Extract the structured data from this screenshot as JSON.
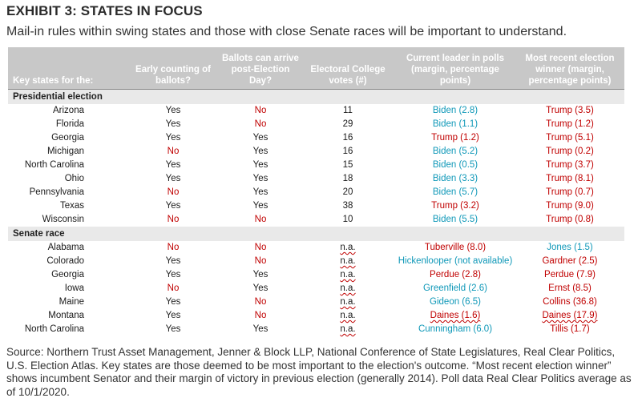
{
  "title": "EXHIBIT 3: STATES IN FOCUS",
  "subtitle": "Mail-in rules within swing states and those with close Senate races will be important to understand.",
  "headers": [
    "Key states for the:",
    "Early counting of ballots?",
    "Ballots can arrive post-Election Day?",
    "Electoral College votes (#)",
    "Current leader in polls (margin, percentage points)",
    "Most recent election winner (margin, percentage points)"
  ],
  "colors": {
    "red": "#c00000",
    "blue": "#0f98b8",
    "header_bg": "#c8c8c8",
    "section_bg": "#e9e9e9"
  },
  "sections": [
    {
      "label": "Presidential election",
      "rows": [
        {
          "state": "Arizona",
          "early": "Yes",
          "early_c": "yes",
          "post": "No",
          "post_c": "red",
          "votes": "11",
          "poll": "Biden (2.8)",
          "poll_c": "blue",
          "winner": "Trump (3.5)",
          "winner_c": "red"
        },
        {
          "state": "Florida",
          "early": "Yes",
          "early_c": "yes",
          "post": "No",
          "post_c": "red",
          "votes": "29",
          "poll": "Biden (1.1)",
          "poll_c": "blue",
          "winner": "Trump (1.2)",
          "winner_c": "red"
        },
        {
          "state": "Georgia",
          "early": "Yes",
          "early_c": "yes",
          "post": "Yes",
          "post_c": "yes",
          "votes": "16",
          "poll": "Trump (1.2)",
          "poll_c": "red",
          "winner": "Trump (5.1)",
          "winner_c": "red"
        },
        {
          "state": "Michigan",
          "early": "No",
          "early_c": "red",
          "post": "Yes",
          "post_c": "yes",
          "votes": "16",
          "poll": "Biden (5.2)",
          "poll_c": "blue",
          "winner": "Trump (0.2)",
          "winner_c": "red"
        },
        {
          "state": "North Carolina",
          "early": "Yes",
          "early_c": "yes",
          "post": "Yes",
          "post_c": "yes",
          "votes": "15",
          "poll": "Biden (0.5)",
          "poll_c": "blue",
          "winner": "Trump (3.7)",
          "winner_c": "red"
        },
        {
          "state": "Ohio",
          "early": "Yes",
          "early_c": "yes",
          "post": "Yes",
          "post_c": "yes",
          "votes": "18",
          "poll": "Biden (3.3)",
          "poll_c": "blue",
          "winner": "Trump (8.1)",
          "winner_c": "red"
        },
        {
          "state": "Pennsylvania",
          "early": "No",
          "early_c": "red",
          "post": "Yes",
          "post_c": "yes",
          "votes": "20",
          "poll": "Biden (5.7)",
          "poll_c": "blue",
          "winner": "Trump (0.7)",
          "winner_c": "red"
        },
        {
          "state": "Texas",
          "early": "Yes",
          "early_c": "yes",
          "post": "Yes",
          "post_c": "yes",
          "votes": "38",
          "poll": "Trump (3.2)",
          "poll_c": "red",
          "winner": "Trump (9.0)",
          "winner_c": "red"
        },
        {
          "state": "Wisconsin",
          "early": "No",
          "early_c": "red",
          "post": "No",
          "post_c": "red",
          "votes": "10",
          "poll": "Biden (5.5)",
          "poll_c": "blue",
          "winner": "Trump (0.8)",
          "winner_c": "red"
        }
      ]
    },
    {
      "label": "Senate race",
      "rows": [
        {
          "state": "Alabama",
          "early": "No",
          "early_c": "red",
          "post": "No",
          "post_c": "red",
          "votes": "n.a.",
          "poll": "Tuberville (8.0)",
          "poll_c": "red",
          "winner": "Jones (1.5)",
          "winner_c": "blue"
        },
        {
          "state": "Colorado",
          "early": "Yes",
          "early_c": "yes",
          "post": "No",
          "post_c": "red",
          "votes": "n.a.",
          "poll": "Hickenlooper (not available)",
          "poll_c": "blue",
          "winner": "Gardner (2.5)",
          "winner_c": "red"
        },
        {
          "state": "Georgia",
          "early": "Yes",
          "early_c": "yes",
          "post": "Yes",
          "post_c": "yes",
          "votes": "n.a.",
          "poll": "Perdue (2.8)",
          "poll_c": "red",
          "winner": "Perdue (7.9)",
          "winner_c": "red"
        },
        {
          "state": "Iowa",
          "early": "No",
          "early_c": "red",
          "post": "Yes",
          "post_c": "yes",
          "votes": "n.a.",
          "poll": "Greenfield (2.6)",
          "poll_c": "blue",
          "winner": "Ernst (8.5)",
          "winner_c": "red"
        },
        {
          "state": "Maine",
          "early": "Yes",
          "early_c": "yes",
          "post": "No",
          "post_c": "red",
          "votes": "n.a.",
          "poll": "Gideon (6.5)",
          "poll_c": "blue",
          "winner": "Collins (36.8)",
          "winner_c": "red"
        },
        {
          "state": "Montana",
          "early": "Yes",
          "early_c": "yes",
          "post": "No",
          "post_c": "red",
          "votes": "n.a.",
          "poll": "Daines (1.6)",
          "poll_c": "red",
          "winner": "Daines (17.9)",
          "winner_c": "red"
        },
        {
          "state": "North Carolina",
          "early": "Yes",
          "early_c": "yes",
          "post": "Yes",
          "post_c": "yes",
          "votes": "n.a.",
          "poll": "Cunningham (6.0)",
          "poll_c": "blue",
          "winner": "Tillis (1.7)",
          "winner_c": "red"
        }
      ]
    }
  ],
  "source": "Source: Northern Trust Asset Management, Jenner & Block LLP, National Conference of State Legislatures, Real Clear Politics, U.S. Election Atlas. Key states are those deemed to be most important to the election's outcome. “Most recent election winner” shows incumbent Senator and their margin of victory in previous election (generally 2014). Poll data Real Clear Politics average as of 10/1/2020."
}
